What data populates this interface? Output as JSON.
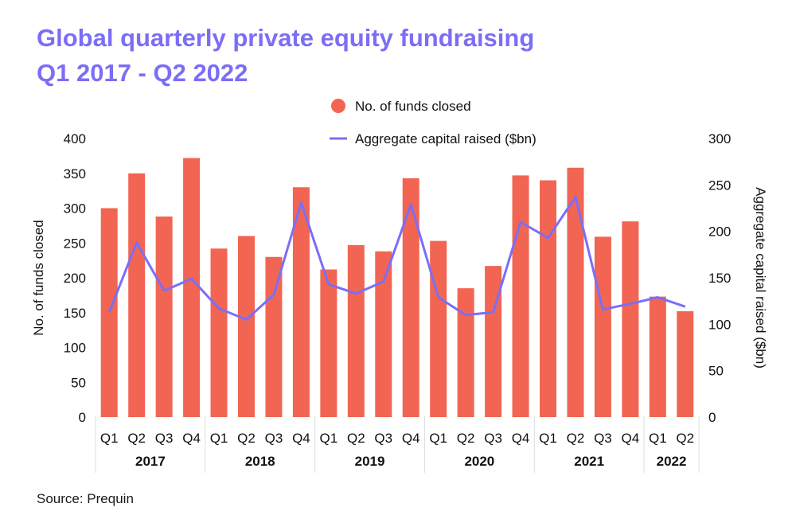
{
  "title_line1": "Global quarterly private equity fundraising",
  "title_line2": "Q1 2017 - Q2 2022",
  "source": "Source: Prequin",
  "colors": {
    "bars": "#f26552",
    "line": "#7b6ef6",
    "title": "#7b6ef6",
    "text": "#111111",
    "axis": "#dddddd"
  },
  "chart_data": {
    "type": "bar",
    "categories": [
      "Q1",
      "Q2",
      "Q3",
      "Q4",
      "Q1",
      "Q2",
      "Q3",
      "Q4",
      "Q1",
      "Q2",
      "Q3",
      "Q4",
      "Q1",
      "Q2",
      "Q3",
      "Q4",
      "Q1",
      "Q2",
      "Q3",
      "Q4",
      "Q1",
      "Q2"
    ],
    "years": [
      {
        "label": "2017",
        "count": 4
      },
      {
        "label": "2018",
        "count": 4
      },
      {
        "label": "2019",
        "count": 4
      },
      {
        "label": "2020",
        "count": 4
      },
      {
        "label": "2021",
        "count": 4
      },
      {
        "label": "2022",
        "count": 2
      }
    ],
    "series": [
      {
        "name": "No. of funds closed",
        "type": "bar",
        "axis": "left",
        "values": [
          300,
          350,
          288,
          372,
          242,
          260,
          230,
          330,
          212,
          247,
          238,
          343,
          253,
          185,
          217,
          347,
          340,
          358,
          259,
          281,
          173,
          152
        ]
      },
      {
        "name": "Aggregate capital raised ($bn)",
        "type": "line",
        "axis": "right",
        "values": [
          113,
          188,
          136,
          149,
          117,
          105,
          132,
          231,
          143,
          133,
          146,
          229,
          129,
          110,
          113,
          210,
          193,
          237,
          116,
          122,
          129,
          119
        ]
      }
    ],
    "ylabel": "No. of funds closed",
    "ylabel_right": "Aggregate capital raised ($bn)",
    "ylim": [
      0,
      400
    ],
    "ylim_right": [
      0,
      300
    ],
    "yticks": [
      0,
      50,
      100,
      150,
      200,
      250,
      300,
      350,
      400
    ],
    "yticks_right": [
      0,
      50,
      100,
      150,
      200,
      250,
      300
    ],
    "legend_position": "top-center",
    "grid": false
  }
}
